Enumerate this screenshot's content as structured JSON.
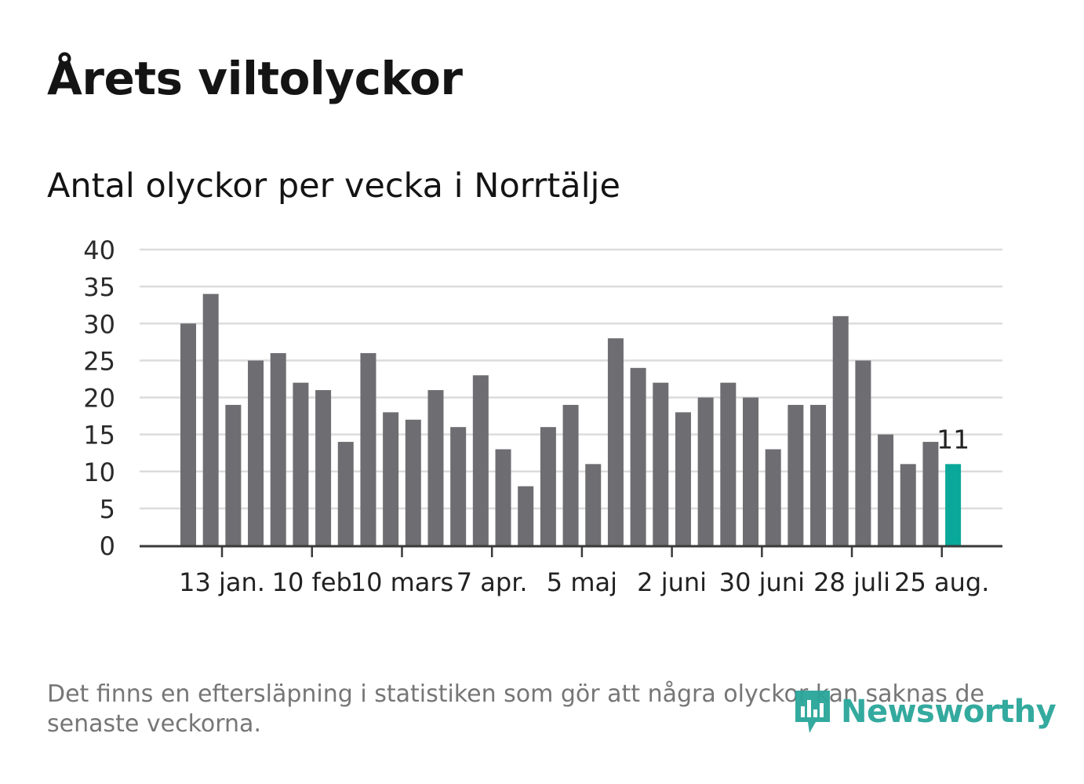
{
  "header": {
    "title": "Årets viltolyckor",
    "subtitle": "Antal olyckor per vecka i Norrtälje"
  },
  "footer": {
    "note": "Det finns en eftersläpning i statistiken som gör att några olyckor kan saknas de senaste veckorna.",
    "brand": "Newsworthy",
    "brand_icon": "bar-chart-badge-icon"
  },
  "colors": {
    "bar": "#6e6d72",
    "highlight": "#0aa89a",
    "grid": "#dcdcdc",
    "axis": "#3a3a3a",
    "brand": "#2aa69a"
  },
  "chart_data": {
    "type": "bar",
    "ylim": [
      0,
      40
    ],
    "yticks": [
      0,
      5,
      10,
      15,
      20,
      25,
      30,
      35,
      40
    ],
    "grid": true,
    "values": [
      30,
      34,
      19,
      25,
      26,
      22,
      21,
      14,
      26,
      18,
      17,
      21,
      16,
      23,
      13,
      8,
      16,
      19,
      11,
      28,
      24,
      22,
      18,
      20,
      22,
      20,
      13,
      19,
      19,
      31,
      25,
      15,
      11,
      14,
      11
    ],
    "x_tick_labels": [
      {
        "index": 1,
        "label": "13 jan."
      },
      {
        "index": 5,
        "label": "10 feb"
      },
      {
        "index": 9,
        "label": "10 mars"
      },
      {
        "index": 13,
        "label": "7 apr."
      },
      {
        "index": 17,
        "label": "5 maj"
      },
      {
        "index": 21,
        "label": "2 juni"
      },
      {
        "index": 25,
        "label": "30 juni"
      },
      {
        "index": 29,
        "label": "28 juli"
      },
      {
        "index": 33,
        "label": "25 aug."
      }
    ],
    "highlight_index": 34,
    "highlight_label": "11"
  }
}
